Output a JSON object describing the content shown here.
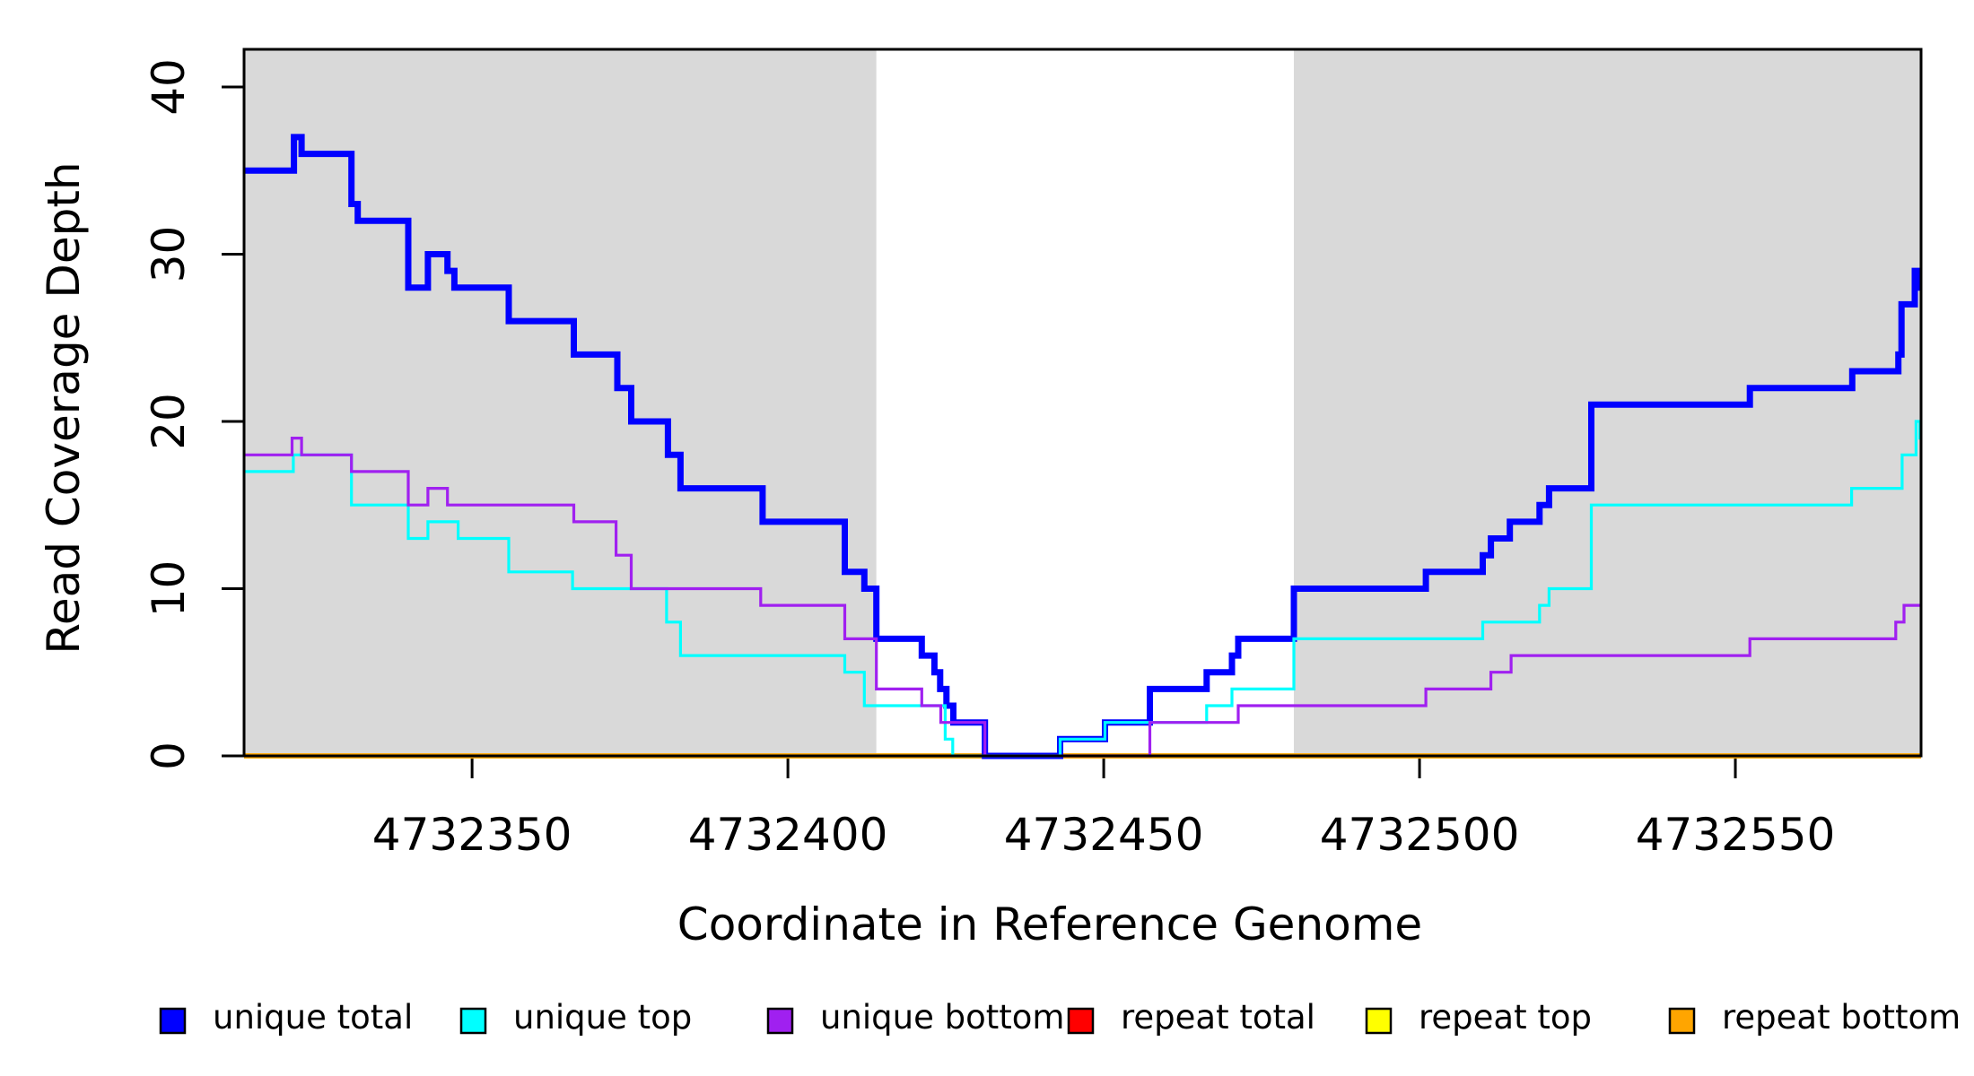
{
  "chart_data": {
    "type": "line",
    "subtype": "step-post",
    "title": "",
    "xlabel": "Coordinate in Reference Genome",
    "ylabel": "Read Coverage Depth",
    "xlim": [
      4732313.9,
      4732579.4
    ],
    "ylim": [
      0,
      42.25
    ],
    "x_ticks": [
      4732350,
      4732400,
      4732450,
      4732500,
      4732550
    ],
    "y_ticks": [
      0,
      10,
      20,
      30,
      40
    ],
    "grid": "off",
    "legend_position": "bottom",
    "shaded_regions": [
      {
        "name": "unique-region-left",
        "x0": 4732313.9,
        "x1": 4732414.0,
        "color": "#D9D9D9"
      },
      {
        "name": "unique-region-right",
        "x0": 4732480.1,
        "x1": 4732579.4,
        "color": "#D9D9D9"
      }
    ],
    "series": [
      {
        "name": "repeat total",
        "color": "#FF0000",
        "line_width": 5.5,
        "points": [
          [
            4732313.9,
            0
          ]
        ]
      },
      {
        "name": "repeat top",
        "color": "#FFFF00",
        "line_width": 5.5,
        "points": [
          [
            4732313.9,
            0
          ]
        ]
      },
      {
        "name": "repeat bottom",
        "color": "#FFA500",
        "line_width": 5.5,
        "points": [
          [
            4732313.9,
            0
          ]
        ]
      },
      {
        "name": "unique total",
        "color": "#0000FF",
        "line_width": 7,
        "points": [
          [
            4732313.9,
            35
          ],
          [
            4732321.8,
            37
          ],
          [
            4732323,
            36
          ],
          [
            4732330.9,
            33
          ],
          [
            4732331.9,
            32
          ],
          [
            4732339.9,
            28
          ],
          [
            4732343,
            30
          ],
          [
            4732346.1,
            29
          ],
          [
            4732347.2,
            28
          ],
          [
            4732355.8,
            26
          ],
          [
            4732366.1,
            24
          ],
          [
            4732373,
            22
          ],
          [
            4732375.2,
            20
          ],
          [
            4732381,
            18
          ],
          [
            4732383,
            16
          ],
          [
            4732396,
            14
          ],
          [
            4732409,
            11
          ],
          [
            4732412.1,
            10
          ],
          [
            4732414,
            7
          ],
          [
            4732421.2,
            6
          ],
          [
            4732423.2,
            5
          ],
          [
            4732424.1,
            4
          ],
          [
            4732425.1,
            3
          ],
          [
            4732426.2,
            2
          ],
          [
            4732431.2,
            0
          ],
          [
            4732443.1,
            1
          ],
          [
            4732450.2,
            2
          ],
          [
            4732457.3,
            4
          ],
          [
            4732466.3,
            5
          ],
          [
            4732470.3,
            6
          ],
          [
            4732471.3,
            7
          ],
          [
            4732480.1,
            10
          ],
          [
            4732501,
            11
          ],
          [
            4732510,
            12
          ],
          [
            4732511.3,
            13
          ],
          [
            4732514.3,
            14
          ],
          [
            4732519,
            15
          ],
          [
            4732520.5,
            16
          ],
          [
            4732527.2,
            21
          ],
          [
            4732552.3,
            22
          ],
          [
            4732568.5,
            23
          ],
          [
            4732575.8,
            24
          ],
          [
            4732576.3,
            27
          ],
          [
            4732578.4,
            29
          ],
          [
            4732579.1,
            28
          ]
        ]
      },
      {
        "name": "unique top",
        "color": "#00FFFF",
        "line_width": 3.2,
        "points": [
          [
            4732313.9,
            17
          ],
          [
            4732321.7,
            18
          ],
          [
            4732330.9,
            15
          ],
          [
            4732339.9,
            13
          ],
          [
            4732343,
            14
          ],
          [
            4732347.8,
            13
          ],
          [
            4732355.8,
            11
          ],
          [
            4732365.9,
            10
          ],
          [
            4732380.8,
            8
          ],
          [
            4732383,
            6
          ],
          [
            4732409,
            5
          ],
          [
            4732412.1,
            3
          ],
          [
            4732424.9,
            1
          ],
          [
            4732426.1,
            0
          ],
          [
            4732443.1,
            1
          ],
          [
            4732450.2,
            2
          ],
          [
            4732466.3,
            3
          ],
          [
            4732470.3,
            4
          ],
          [
            4732480.1,
            7
          ],
          [
            4732510,
            8
          ],
          [
            4732519,
            9
          ],
          [
            4732520.5,
            10
          ],
          [
            4732527.2,
            15
          ],
          [
            4732568.4,
            16
          ],
          [
            4732576.4,
            18
          ],
          [
            4732578.6,
            20
          ],
          [
            4732579.2,
            19
          ]
        ]
      },
      {
        "name": "unique bottom",
        "color": "#A020F0",
        "line_width": 3.2,
        "points": [
          [
            4732313.9,
            18
          ],
          [
            4732321.5,
            19
          ],
          [
            4732323,
            18
          ],
          [
            4732330.9,
            17
          ],
          [
            4732339.9,
            15
          ],
          [
            4732343,
            16
          ],
          [
            4732346.1,
            15
          ],
          [
            4732366.1,
            14
          ],
          [
            4732372.8,
            12
          ],
          [
            4732375.2,
            10
          ],
          [
            4732395.7,
            9
          ],
          [
            4732409,
            7
          ],
          [
            4732414,
            4
          ],
          [
            4732421.2,
            3
          ],
          [
            4732424.2,
            2
          ],
          [
            4732431.2,
            0
          ],
          [
            4732457.3,
            2
          ],
          [
            4732471.3,
            3
          ],
          [
            4732501,
            4
          ],
          [
            4732511.3,
            5
          ],
          [
            4732514.5,
            6
          ],
          [
            4732552.3,
            7
          ],
          [
            4732575.4,
            8
          ],
          [
            4732576.7,
            9
          ]
        ]
      }
    ],
    "legend": {
      "entries": [
        {
          "label": "unique total",
          "color": "#0000FF"
        },
        {
          "label": "unique top",
          "color": "#00FFFF"
        },
        {
          "label": "unique bottom",
          "color": "#A020F0"
        },
        {
          "label": "repeat total",
          "color": "#FF0000"
        },
        {
          "label": "repeat top",
          "color": "#FFFF00"
        },
        {
          "label": "repeat bottom",
          "color": "#FFA500"
        }
      ]
    }
  }
}
